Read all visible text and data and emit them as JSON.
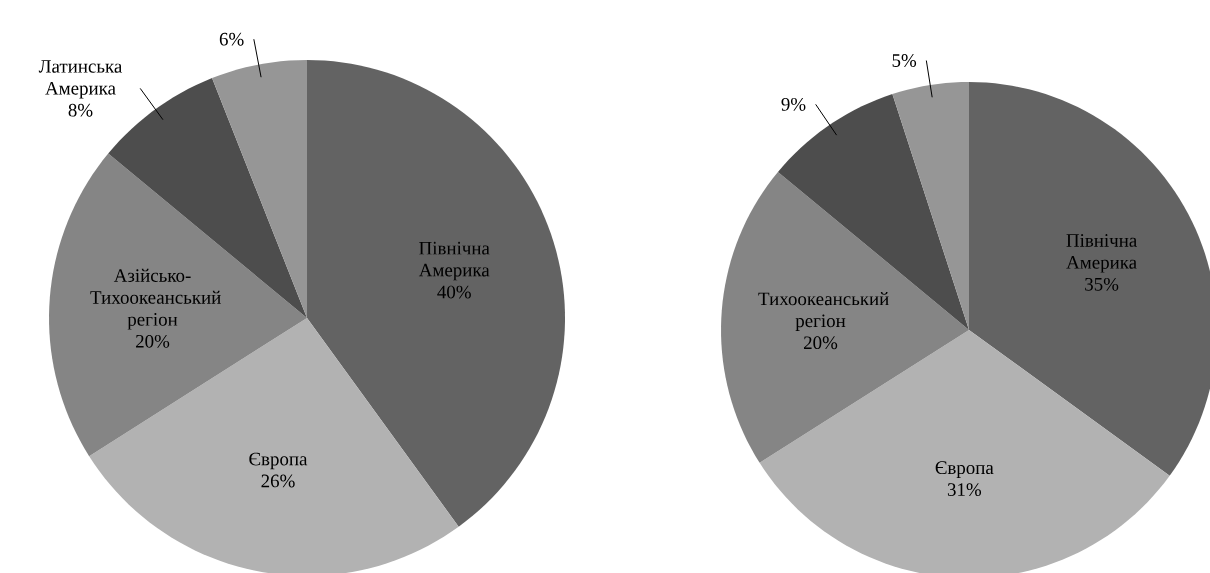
{
  "chart_data": [
    {
      "type": "pie",
      "categories": [
        "Північна Америка",
        "Європа",
        "Азійсько-Тихоокеанський регіон",
        "Латинська Америка",
        null
      ],
      "values": [
        40,
        26,
        20,
        8,
        6
      ],
      "value_labels": [
        "40%",
        "26%",
        "20%",
        "8%",
        "6%"
      ],
      "colors": [
        "#636363",
        "#b2b2b2",
        "#858585",
        "#4d4d4d",
        "#969696"
      ]
    },
    {
      "type": "pie",
      "categories": [
        "Північна Америка",
        "Європа",
        "Тихоокеанський регіон",
        null,
        null
      ],
      "values": [
        35,
        31,
        20,
        9,
        5
      ],
      "value_labels": [
        "35%",
        "31%",
        "20%",
        "9%",
        "5%"
      ],
      "colors": [
        "#636363",
        "#b2b2b2",
        "#858585",
        "#4d4d4d",
        "#969696"
      ]
    }
  ]
}
